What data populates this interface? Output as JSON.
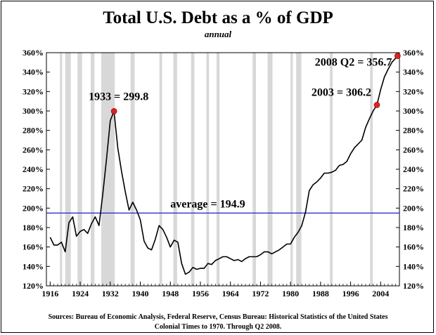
{
  "chart_data": {
    "type": "line",
    "title": "Total U.S. Debt as a % of GDP",
    "subtitle": "annual",
    "xlabel": "",
    "ylabel": "",
    "xlim": [
      1915,
      2009
    ],
    "ylim": [
      120,
      360
    ],
    "x_ticks": [
      1916,
      1924,
      1932,
      1940,
      1948,
      1956,
      1964,
      1972,
      1980,
      1988,
      1996,
      2004
    ],
    "y_ticks_left": [
      "120%",
      "140%",
      "160%",
      "180%",
      "200%",
      "220%",
      "240%",
      "260%",
      "280%",
      "300%",
      "320%",
      "340%",
      "360%"
    ],
    "y_ticks_right": [
      "120%",
      "140%",
      "160%",
      "180%",
      "200%",
      "220%",
      "240%",
      "260%",
      "280%",
      "300%",
      "320%",
      "340%",
      "360%"
    ],
    "grid": false,
    "line_color": "#000000",
    "average_color": "#1f1fcf",
    "recession_color": "#d8d8d8",
    "marker_color": "#e02020",
    "average": 194.9,
    "average_label": "average = 194.9",
    "annotations": [
      {
        "label": "1933 = 299.8",
        "x": 1933,
        "y": 299.8
      },
      {
        "label": "2003 = 306.2",
        "x": 2003,
        "y": 306.2
      },
      {
        "label": "2008 Q2 = 356.7",
        "x": 2008.5,
        "y": 356.7
      }
    ],
    "recessions": [
      [
        1918.6,
        1919.2
      ],
      [
        1920.0,
        1921.5
      ],
      [
        1923.3,
        1924.5
      ],
      [
        1926.8,
        1927.8
      ],
      [
        1929.6,
        1933.2
      ],
      [
        1937.4,
        1938.5
      ],
      [
        1945.1,
        1945.8
      ],
      [
        1948.8,
        1949.8
      ],
      [
        1953.5,
        1954.4
      ],
      [
        1957.6,
        1958.3
      ],
      [
        1960.3,
        1961.1
      ],
      [
        1969.9,
        1970.8
      ],
      [
        1973.9,
        1975.2
      ],
      [
        1980.0,
        1980.6
      ],
      [
        1981.5,
        1982.9
      ],
      [
        1990.5,
        1991.2
      ],
      [
        2001.2,
        2001.9
      ]
    ],
    "series": [
      {
        "x": [
          1916,
          1917,
          1918,
          1919,
          1920,
          1921,
          1922,
          1923,
          1924,
          1925,
          1926,
          1927,
          1928,
          1929,
          1930,
          1931,
          1932,
          1933,
          1934,
          1935,
          1936,
          1937,
          1938,
          1939,
          1940,
          1941,
          1942,
          1943,
          1944,
          1945,
          1946,
          1947,
          1948,
          1949,
          1950,
          1951,
          1952,
          1953,
          1954,
          1955,
          1956,
          1957,
          1958,
          1959,
          1960,
          1961,
          1962,
          1963,
          1964,
          1965,
          1966,
          1967,
          1968,
          1969,
          1970,
          1971,
          1972,
          1973,
          1974,
          1975,
          1976,
          1977,
          1978,
          1979,
          1980,
          1981,
          1982,
          1983,
          1984,
          1985,
          1986,
          1987,
          1988,
          1989,
          1990,
          1991,
          1992,
          1993,
          1994,
          1995,
          1996,
          1997,
          1998,
          1999,
          2000,
          2001,
          2002,
          2003,
          2004,
          2005,
          2006,
          2007,
          2008.5
        ],
        "values": [
          170,
          162,
          162,
          165,
          155,
          185,
          191,
          171,
          176,
          178,
          174,
          184,
          191,
          182,
          214,
          250,
          290,
          299.8,
          262,
          238,
          217,
          198,
          206,
          198,
          188,
          166,
          159,
          157,
          168,
          182,
          178,
          170,
          160,
          167,
          165,
          143,
          132,
          134,
          139,
          137,
          138,
          138,
          143,
          142,
          146,
          148,
          150,
          150,
          148,
          146,
          147,
          145,
          148,
          150,
          150,
          150,
          152,
          155,
          155,
          153,
          155,
          157,
          160,
          163,
          163,
          170,
          175,
          182,
          196,
          218,
          224,
          227,
          231,
          236,
          236,
          237,
          239,
          244,
          245,
          248,
          256,
          262,
          266,
          270,
          283,
          292,
          300,
          306.2,
          322,
          335,
          343,
          350,
          356.7
        ]
      }
    ],
    "source_line1": "Sources: Bureau of Economic Analysis, Federal Reserve, Census Bureau: Historical Statistics of the United States",
    "source_line2": "Colonial Times to 1970.   Through Q2 2008."
  }
}
